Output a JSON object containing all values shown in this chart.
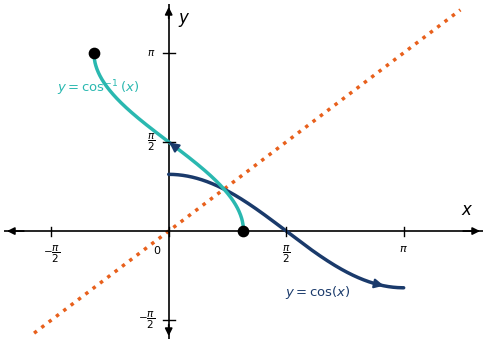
{
  "bg_color": "#ffffff",
  "axis_color": "#000000",
  "cos_color": "#1a3a6b",
  "arccos_color": "#2ab8b0",
  "identity_color": "#e8601c",
  "identity_linewidth": 2.5,
  "cos_linewidth": 2.5,
  "arccos_linewidth": 2.5,
  "xlim": [
    -2.2,
    4.2
  ],
  "ylim": [
    -1.9,
    4.0
  ],
  "pi": 3.14159265358979,
  "dot_points": [
    [
      -1.0,
      3.14159265
    ],
    [
      1.0,
      0.0
    ]
  ],
  "dot_color": "#000000",
  "dot_size": 55
}
